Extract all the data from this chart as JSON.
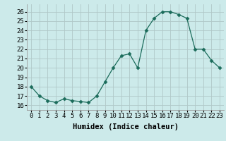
{
  "x": [
    0,
    1,
    2,
    3,
    4,
    5,
    6,
    7,
    8,
    9,
    10,
    11,
    12,
    13,
    14,
    15,
    16,
    17,
    18,
    19,
    20,
    21,
    22,
    23
  ],
  "y": [
    18,
    17,
    16.5,
    16.3,
    16.7,
    16.5,
    16.4,
    16.3,
    17,
    18.5,
    20,
    21.3,
    21.5,
    20,
    24,
    25.3,
    26,
    26,
    25.7,
    25.3,
    22,
    22,
    20.8,
    20
  ],
  "line_color": "#1a6b5a",
  "marker": "D",
  "marker_size": 2.5,
  "bg_color": "#cceaea",
  "grid_color": "#b0c8c8",
  "xlabel": "Humidex (Indice chaleur)",
  "ylim": [
    15.5,
    26.8
  ],
  "xlim": [
    -0.5,
    23.5
  ],
  "yticks": [
    16,
    17,
    18,
    19,
    20,
    21,
    22,
    23,
    24,
    25,
    26
  ],
  "xticks": [
    0,
    1,
    2,
    3,
    4,
    5,
    6,
    7,
    8,
    9,
    10,
    11,
    12,
    13,
    14,
    15,
    16,
    17,
    18,
    19,
    20,
    21,
    22,
    23
  ],
  "xlabel_fontsize": 7.5,
  "tick_fontsize": 6.5
}
